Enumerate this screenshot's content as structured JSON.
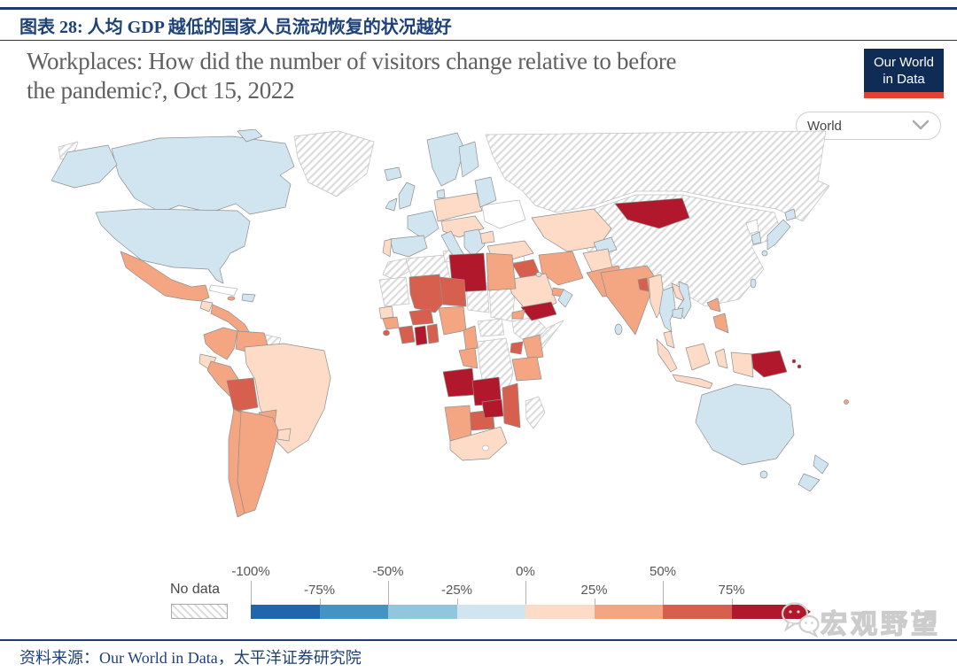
{
  "page": {
    "figure_title": "图表 28: 人均 GDP 越低的国家人员流动恢复的状况越好",
    "source_text": "资料来源：Our World in Data，太平洋证券研究院",
    "watermark_text": "宏观野望"
  },
  "chart": {
    "title_line1": "Workplaces: How did the number of visitors change relative to before",
    "title_line2": "the pandemic?, Oct 15, 2022",
    "logo_line1": "Our World",
    "logo_line2": "in Data",
    "region_selector_value": "World"
  },
  "legend": {
    "no_data_label": "No data",
    "tick_labels": [
      "-100%",
      "-75%",
      "-50%",
      "-25%",
      "0%",
      "25%",
      "50%",
      "75%"
    ],
    "colors": [
      "#2166ac",
      "#4393c3",
      "#92c5de",
      "#d1e5f0",
      "#fddbc7",
      "#f4a582",
      "#d6604d",
      "#b2182b"
    ]
  },
  "chart_data": {
    "type": "choropleth_map",
    "title": "Workplaces: How did the number of visitors change relative to before the pandemic?, Oct 15, 2022",
    "date": "Oct 15, 2022",
    "region_view": "World",
    "unit": "% change in visitors relative to pre-pandemic baseline",
    "legend_bins": [
      {
        "range": "-100% to -75%",
        "color": "#2166ac"
      },
      {
        "range": "-75% to -50%",
        "color": "#4393c3"
      },
      {
        "range": "-50% to -25%",
        "color": "#92c5de"
      },
      {
        "range": "-25% to 0%",
        "color": "#d1e5f0"
      },
      {
        "range": "0% to 25%",
        "color": "#fddbc7"
      },
      {
        "range": "25% to 50%",
        "color": "#f4a582"
      },
      {
        "range": "50% to 75%",
        "color": "#d6604d"
      },
      {
        "range": "75% and above",
        "color": "#b2182b"
      }
    ],
    "no_data_label": "No data",
    "regions": [
      {
        "name": "United States",
        "bin": "-25% to 0%",
        "color": "#d1e5f0"
      },
      {
        "name": "Canada",
        "bin": "-25% to 0%",
        "color": "#d1e5f0"
      },
      {
        "name": "Greenland",
        "bin": "no data",
        "color": "hatch"
      },
      {
        "name": "Mexico",
        "bin": "25% to 50%",
        "color": "#f4a582"
      },
      {
        "name": "Guatemala",
        "bin": "0% to 25%",
        "color": "#fddbc7"
      },
      {
        "name": "Central America",
        "bin": "25% to 50%",
        "color": "#f4a582"
      },
      {
        "name": "Cuba",
        "bin": "no data",
        "color": "#ffffff"
      },
      {
        "name": "Jamaica",
        "bin": "25% to 50%",
        "color": "#f4a582"
      },
      {
        "name": "Haiti & Dominican Republic",
        "bin": "-25% to 0%",
        "color": "#d1e5f0"
      },
      {
        "name": "Colombia",
        "bin": "25% to 50%",
        "color": "#f4a582"
      },
      {
        "name": "Venezuela",
        "bin": "25% to 50%",
        "color": "#f4a582"
      },
      {
        "name": "Guyana & Suriname",
        "bin": "no data",
        "color": "hatch"
      },
      {
        "name": "Ecuador",
        "bin": "0% to 25%",
        "color": "#fddbc7"
      },
      {
        "name": "Peru",
        "bin": "25% to 50%",
        "color": "#f4a582"
      },
      {
        "name": "Brazil",
        "bin": "0% to 25%",
        "color": "#fddbc7"
      },
      {
        "name": "Bolivia",
        "bin": "50% to 75%",
        "color": "#d6604d"
      },
      {
        "name": "Paraguay",
        "bin": "25% to 50%",
        "color": "#f4a582"
      },
      {
        "name": "Chile",
        "bin": "25% to 50%",
        "color": "#f4a582"
      },
      {
        "name": "Argentina",
        "bin": "25% to 50%",
        "color": "#f4a582"
      },
      {
        "name": "Uruguay",
        "bin": "0% to 25%",
        "color": "#fddbc7"
      },
      {
        "name": "Iceland",
        "bin": "-25% to 0%",
        "color": "#d1e5f0"
      },
      {
        "name": "United Kingdom",
        "bin": "-25% to 0%",
        "color": "#d1e5f0"
      },
      {
        "name": "Ireland",
        "bin": "-25% to 0%",
        "color": "#d1e5f0"
      },
      {
        "name": "Norway & Sweden",
        "bin": "-25% to 0%",
        "color": "#d1e5f0"
      },
      {
        "name": "Finland",
        "bin": "-25% to 0%",
        "color": "#d1e5f0"
      },
      {
        "name": "Denmark",
        "bin": "-25% to 0%",
        "color": "#d1e5f0"
      },
      {
        "name": "France",
        "bin": "-25% to 0%",
        "color": "#d1e5f0"
      },
      {
        "name": "Spain",
        "bin": "-25% to 0%",
        "color": "#d1e5f0"
      },
      {
        "name": "Portugal",
        "bin": "0% to 25%",
        "color": "#fddbc7"
      },
      {
        "name": "Germany & Poland",
        "bin": "0% to 25%",
        "color": "#fddbc7"
      },
      {
        "name": "Baltics & Belarus",
        "bin": "-25% to 0%",
        "color": "#d1e5f0"
      },
      {
        "name": "Central Europe",
        "bin": "0% to 25%",
        "color": "#fddbc7"
      },
      {
        "name": "Italy",
        "bin": "-25% to 0%",
        "color": "#d1e5f0"
      },
      {
        "name": "Balkans & Greece",
        "bin": "-25% to 0%",
        "color": "#d1e5f0"
      },
      {
        "name": "Bulgaria",
        "bin": "0% to 25%",
        "color": "#fddbc7"
      },
      {
        "name": "Ukraine",
        "bin": "no data",
        "color": "#ffffff"
      },
      {
        "name": "Turkey",
        "bin": "0% to 25%",
        "color": "#fddbc7"
      },
      {
        "name": "Russia",
        "bin": "no data",
        "color": "hatch"
      },
      {
        "name": "China",
        "bin": "no data",
        "color": "hatch"
      },
      {
        "name": "Kazakhstan",
        "bin": "0% to 25%",
        "color": "#fddbc7"
      },
      {
        "name": "Uzbekistan",
        "bin": "-25% to 0%",
        "color": "#d1e5f0"
      },
      {
        "name": "Mongolia",
        "bin": "75% and above",
        "color": "#b2182b"
      },
      {
        "name": "Syria",
        "bin": "no data",
        "color": "#ffffff"
      },
      {
        "name": "Iraq",
        "bin": "50% to 75%",
        "color": "#d6604d"
      },
      {
        "name": "Iran",
        "bin": "25% to 50%",
        "color": "#f4a582"
      },
      {
        "name": "Saudi Arabia",
        "bin": "0% to 25%",
        "color": "#fddbc7"
      },
      {
        "name": "Kuwait",
        "bin": "-25% to 0%",
        "color": "#d1e5f0"
      },
      {
        "name": "United Arab Emirates",
        "bin": "25% to 50%",
        "color": "#f4a582"
      },
      {
        "name": "Oman",
        "bin": "-25% to 0%",
        "color": "#d1e5f0"
      },
      {
        "name": "Yemen",
        "bin": "75% and above",
        "color": "#b2182b"
      },
      {
        "name": "Afghanistan",
        "bin": "0% to 25%",
        "color": "#fddbc7"
      },
      {
        "name": "Pakistan",
        "bin": "25% to 50%",
        "color": "#f4a582"
      },
      {
        "name": "India",
        "bin": "25% to 50%",
        "color": "#f4a582"
      },
      {
        "name": "Bangladesh",
        "bin": "50% to 75%",
        "color": "#d6604d"
      },
      {
        "name": "Sri Lanka",
        "bin": "-25% to 0%",
        "color": "#d1e5f0"
      },
      {
        "name": "Myanmar",
        "bin": "0% to 25%",
        "color": "#fddbc7"
      },
      {
        "name": "Thailand",
        "bin": "-25% to 0%",
        "color": "#d1e5f0"
      },
      {
        "name": "Laos",
        "bin": "0% to 25%",
        "color": "#fddbc7"
      },
      {
        "name": "Vietnam",
        "bin": "-25% to 0%",
        "color": "#d1e5f0"
      },
      {
        "name": "Cambodia",
        "bin": "-25% to 0%",
        "color": "#d1e5f0"
      },
      {
        "name": "Malaysia",
        "bin": "0% to 25%",
        "color": "#fddbc7"
      },
      {
        "name": "Indonesia",
        "bin": "0% to 25%",
        "color": "#fddbc7"
      },
      {
        "name": "Philippines",
        "bin": "25% to 50%",
        "color": "#f4a582"
      },
      {
        "name": "Taiwan",
        "bin": "-25% to 0%",
        "color": "#d1e5f0"
      },
      {
        "name": "Japan",
        "bin": "-25% to 0%",
        "color": "#d1e5f0"
      },
      {
        "name": "South Korea",
        "bin": "-25% to 0%",
        "color": "#d1e5f0"
      },
      {
        "name": "North Korea",
        "bin": "no data",
        "color": "#ffffff"
      },
      {
        "name": "Papua New Guinea",
        "bin": "75% and above",
        "color": "#b2182b"
      },
      {
        "name": "Solomon Islands",
        "bin": "75% and above",
        "color": "#b2182b"
      },
      {
        "name": "Fiji",
        "bin": "25% to 50%",
        "color": "#f4a582"
      },
      {
        "name": "Australia",
        "bin": "-25% to 0%",
        "color": "#d1e5f0"
      },
      {
        "name": "New Zealand",
        "bin": "-25% to 0%",
        "color": "#d1e5f0"
      },
      {
        "name": "Morocco",
        "bin": "no data",
        "color": "hatch"
      },
      {
        "name": "Algeria",
        "bin": "no data",
        "color": "hatch"
      },
      {
        "name": "Tunisia",
        "bin": "no data",
        "color": "hatch"
      },
      {
        "name": "Mauritania & Western Sahara",
        "bin": "no data",
        "color": "hatch"
      },
      {
        "name": "Libya",
        "bin": "75% and above",
        "color": "#b2182b"
      },
      {
        "name": "Egypt",
        "bin": "25% to 50%",
        "color": "#f4a582"
      },
      {
        "name": "Mali",
        "bin": "50% to 75%",
        "color": "#d6604d"
      },
      {
        "name": "Niger",
        "bin": "50% to 75%",
        "color": "#d6604d"
      },
      {
        "name": "Chad",
        "bin": "no data",
        "color": "hatch"
      },
      {
        "name": "Sudan",
        "bin": "no data",
        "color": "hatch"
      },
      {
        "name": "Eritrea",
        "bin": "25% to 50%",
        "color": "#f4a582"
      },
      {
        "name": "Ethiopia",
        "bin": "no data",
        "color": "hatch"
      },
      {
        "name": "Somalia",
        "bin": "no data",
        "color": "hatch"
      },
      {
        "name": "Senegal",
        "bin": "0% to 25%",
        "color": "#fddbc7"
      },
      {
        "name": "Guinea",
        "bin": "25% to 50%",
        "color": "#f4a582"
      },
      {
        "name": "Sierra Leone",
        "bin": "50% to 75%",
        "color": "#d6604d"
      },
      {
        "name": "Cote d'Ivoire",
        "bin": "50% to 75%",
        "color": "#d6604d"
      },
      {
        "name": "Ghana",
        "bin": "75% and above",
        "color": "#b2182b"
      },
      {
        "name": "Togo & Benin",
        "bin": "50% to 75%",
        "color": "#d6604d"
      },
      {
        "name": "Burkina Faso",
        "bin": "50% to 75%",
        "color": "#d6604d"
      },
      {
        "name": "Nigeria",
        "bin": "25% to 50%",
        "color": "#f4a582"
      },
      {
        "name": "Cameroon",
        "bin": "25% to 50%",
        "color": "#f4a582"
      },
      {
        "name": "Central African Republic",
        "bin": "no data",
        "color": "hatch"
      },
      {
        "name": "Gabon & Congo",
        "bin": "25% to 50%",
        "color": "#f4a582"
      },
      {
        "name": "Democratic Republic of Congo",
        "bin": "no data",
        "color": "hatch"
      },
      {
        "name": "Uganda",
        "bin": "50% to 75%",
        "color": "#d6604d"
      },
      {
        "name": "Kenya",
        "bin": "25% to 50%",
        "color": "#f4a582"
      },
      {
        "name": "Tanzania",
        "bin": "25% to 50%",
        "color": "#f4a582"
      },
      {
        "name": "Angola",
        "bin": "75% and above",
        "color": "#b2182b"
      },
      {
        "name": "Zambia",
        "bin": "75% and above",
        "color": "#b2182b"
      },
      {
        "name": "Zimbabwe",
        "bin": "75% and above",
        "color": "#b2182b"
      },
      {
        "name": "Mozambique",
        "bin": "50% to 75%",
        "color": "#d6604d"
      },
      {
        "name": "Botswana",
        "bin": "50% to 75%",
        "color": "#d6604d"
      },
      {
        "name": "Namibia",
        "bin": "25% to 50%",
        "color": "#f4a582"
      },
      {
        "name": "South Africa",
        "bin": "0% to 25%",
        "color": "#fddbc7"
      },
      {
        "name": "Lesotho",
        "bin": "no data",
        "color": "#ffffff"
      },
      {
        "name": "Madagascar",
        "bin": "no data",
        "color": "hatch"
      }
    ]
  }
}
